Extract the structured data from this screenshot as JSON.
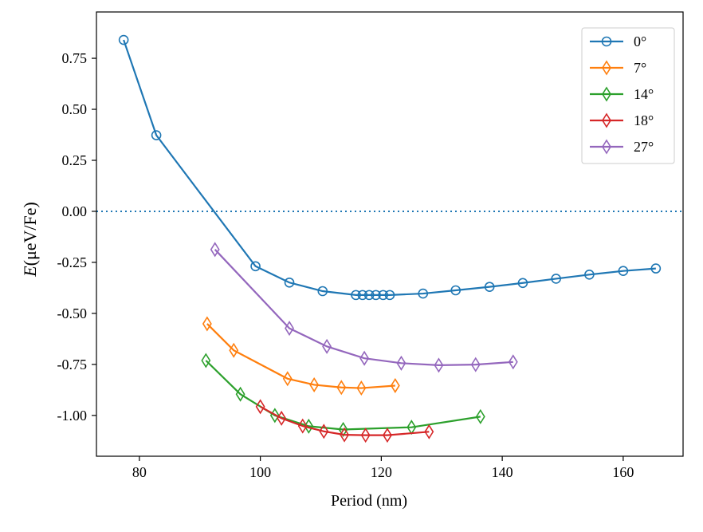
{
  "chart_data": {
    "type": "line",
    "xlabel": "Period (nm)",
    "ylabel_italic": "E",
    "ylabel_rest": "(μeV/Fe)",
    "xlim": [
      72.9,
      169.9
    ],
    "ylim": [
      -1.2,
      0.977
    ],
    "xticks": [
      80,
      100,
      120,
      140,
      160
    ],
    "xtick_labels": [
      "80",
      "100",
      "120",
      "140",
      "160"
    ],
    "yticks": [
      0.75,
      0.5,
      0.25,
      0,
      -0.25,
      -0.5,
      -0.75,
      -1.0
    ],
    "ytick_labels": [
      "0.75",
      "0.50",
      "0.25",
      "0.00",
      "-0.25",
      "-0.50",
      "-0.75",
      "-1.00"
    ],
    "grid": false,
    "legend_position": "top-right",
    "reference_line": {
      "y": 0,
      "style": "dotted",
      "color": "#1f77b4"
    },
    "series": [
      {
        "name": "0°",
        "color": "#1f77b4",
        "marker": "circle",
        "x": [
          77.4,
          82.8,
          99.2,
          104.8,
          110.3,
          115.8,
          116.9,
          118.0,
          119.1,
          120.3,
          121.4,
          126.9,
          132.3,
          137.9,
          143.4,
          148.9,
          154.4,
          160.0,
          165.4
        ],
        "y": [
          0.84,
          0.373,
          -0.269,
          -0.349,
          -0.391,
          -0.41,
          -0.41,
          -0.41,
          -0.41,
          -0.41,
          -0.41,
          -0.403,
          -0.387,
          -0.37,
          -0.351,
          -0.33,
          -0.31,
          -0.292,
          -0.28
        ]
      },
      {
        "name": "7°",
        "color": "#ff7f0e",
        "marker": "diamond",
        "x": [
          91.2,
          95.6,
          104.5,
          108.9,
          113.4,
          116.7,
          122.3
        ],
        "y": [
          -0.551,
          -0.681,
          -0.82,
          -0.85,
          -0.863,
          -0.866,
          -0.854
        ]
      },
      {
        "name": "14°",
        "color": "#2ca02c",
        "marker": "diamond",
        "x": [
          91.0,
          96.7,
          102.4,
          108.0,
          113.7,
          125.0,
          136.4
        ],
        "y": [
          -0.731,
          -0.896,
          -1.0,
          -1.053,
          -1.069,
          -1.058,
          -1.006
        ]
      },
      {
        "name": "18°",
        "color": "#d62728",
        "marker": "diamond",
        "x": [
          100.0,
          103.5,
          107.0,
          110.5,
          113.9,
          117.4,
          121.0,
          127.9
        ],
        "y": [
          -0.957,
          -1.014,
          -1.052,
          -1.078,
          -1.095,
          -1.097,
          -1.097,
          -1.08
        ]
      },
      {
        "name": "27°",
        "color": "#9467bd",
        "marker": "diamond",
        "x": [
          92.5,
          104.8,
          111.0,
          117.2,
          123.3,
          129.5,
          135.6,
          141.8
        ],
        "y": [
          -0.187,
          -0.573,
          -0.662,
          -0.72,
          -0.744,
          -0.754,
          -0.751,
          -0.738
        ]
      }
    ]
  }
}
